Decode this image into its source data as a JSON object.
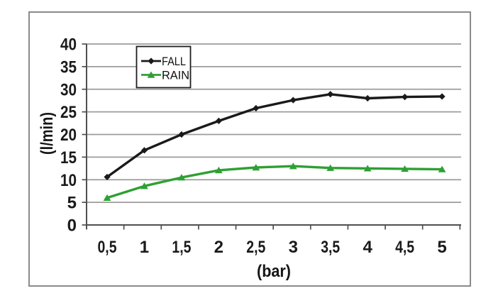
{
  "chart_data": {
    "type": "line",
    "title": "",
    "xlabel": "(bar)",
    "ylabel": "(l/min)",
    "categories": [
      "0,5",
      "1",
      "1,5",
      "2",
      "2,5",
      "3",
      "3,5",
      "4",
      "4,5",
      "5"
    ],
    "x_values": [
      0.5,
      1,
      1.5,
      2,
      2.5,
      3,
      3.5,
      4,
      4.5,
      5
    ],
    "ylim": [
      0,
      40
    ],
    "ytick_step": 5,
    "grid": "horizontal-only",
    "legend_position": "top-left-inside",
    "series": [
      {
        "name": "FALL",
        "color": "#1a1a1a",
        "marker": "diamond",
        "values": [
          10.6,
          16.5,
          20,
          23,
          25.8,
          27.6,
          28.9,
          28,
          28.3,
          28.4
        ]
      },
      {
        "name": "RAIN",
        "color": "#2ea033",
        "marker": "triangle",
        "values": [
          6,
          8.6,
          10.5,
          12.1,
          12.7,
          13,
          12.6,
          12.5,
          12.4,
          12.3
        ]
      }
    ]
  },
  "colors": {
    "background": "#ffffff",
    "frame_border": "#8a8a8a",
    "gridline": "#9c9c9c",
    "axis": "#4f4f4f",
    "legend_border": "#1f1f1f",
    "text": "#1a1a1a"
  }
}
